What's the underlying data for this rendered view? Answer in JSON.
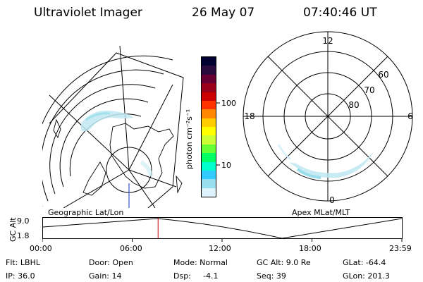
{
  "header": {
    "title": "Ultraviolet Imager",
    "date": "26 May 07",
    "time": "07:40:46 UT"
  },
  "left_map": {
    "label": "Geographic Lat/Lon"
  },
  "right_map": {
    "label": "Apex MLat/MLT",
    "mlt_labels": [
      "12",
      "18",
      "6",
      "0"
    ],
    "lat_labels": [
      "60",
      "70",
      "80"
    ]
  },
  "colorbar": {
    "unit_label": "photon cm⁻²s⁻¹",
    "tick_labels": [
      "100",
      "10"
    ],
    "colors": [
      "#000033",
      "#2b0a3d",
      "#660033",
      "#99001a",
      "#cc0000",
      "#ff3300",
      "#ff8800",
      "#ffcc00",
      "#ffff00",
      "#ccff33",
      "#66ff33",
      "#00ff66",
      "#00ffcc",
      "#33ccff",
      "#99ddee",
      "#ddf4ff"
    ]
  },
  "timeline": {
    "y_axis_label": "GC Alt",
    "y_ticks": [
      "9.0",
      "1.8"
    ],
    "x_ticks": [
      "00:00",
      "06:00",
      "12:00",
      "18:00",
      "23:59"
    ],
    "current_time_fraction": 0.322,
    "current_marker_color": "#cc0000"
  },
  "info": {
    "row1": [
      "Flt: LBHL",
      "Door: Open",
      "Mode: Normal",
      "GC Alt: 9.0 Re",
      "GLat: -64.4"
    ],
    "row2": [
      "IP: 36.0",
      "Gain: 14",
      "Dsp:",
      "-4.1",
      "Seq: 39",
      "GLon: 201.3"
    ]
  }
}
